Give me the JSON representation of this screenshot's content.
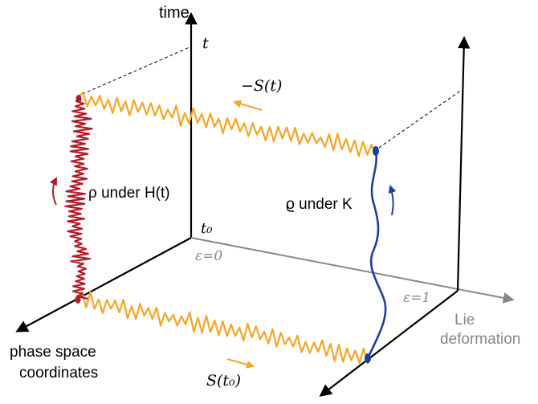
{
  "labels": {
    "time": "time",
    "t": "t",
    "t0": "t₀",
    "minus_S_t": "−S(t)",
    "rho_under_H": "ρ under H(t)",
    "varrho_under_K": "ϱ under K",
    "epsilon0": "ε=0",
    "epsilon1": "ε=1",
    "lie_deformation_1": "Lie",
    "lie_deformation_2": "deformation",
    "phase_space_1": "phase space",
    "phase_space_2": "coordinates",
    "S_t0": "S(t₀)"
  },
  "colors": {
    "axis": "#000000",
    "lie_axis": "#888888",
    "dashed": "#000000",
    "rho_path": "#b31b2a",
    "varrho_path": "#1f3e9e",
    "noisy_band": "#f5a623",
    "small_arrow": "#f5a623"
  }
}
